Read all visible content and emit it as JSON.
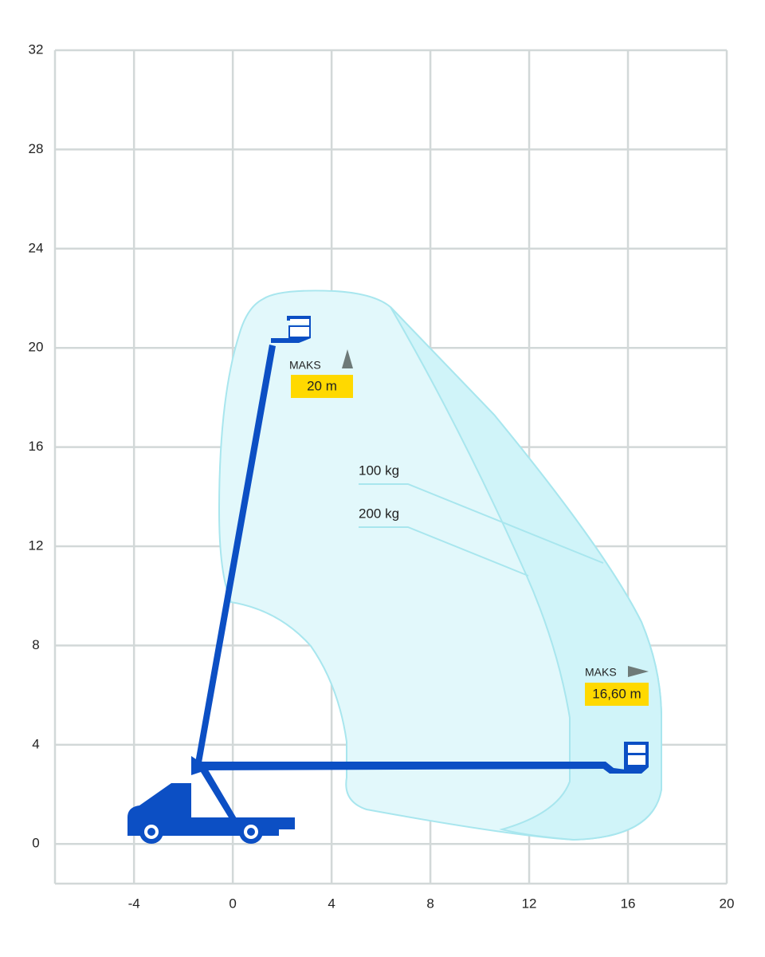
{
  "chart_data": {
    "type": "range-diagram",
    "xlim": [
      -7.2,
      20
    ],
    "ylim": [
      -1.6,
      32
    ],
    "xticks": [
      -4,
      0,
      4,
      8,
      12,
      16,
      20
    ],
    "yticks": [
      0,
      4,
      8,
      12,
      16,
      20,
      24,
      28,
      32
    ],
    "grid": true,
    "annotations": {
      "max_height_label": "MAKS",
      "max_height": "20 m",
      "max_reach_label": "MAKS",
      "max_reach": "16,60 m",
      "load_1": "100 kg",
      "load_2": "200 kg"
    }
  }
}
